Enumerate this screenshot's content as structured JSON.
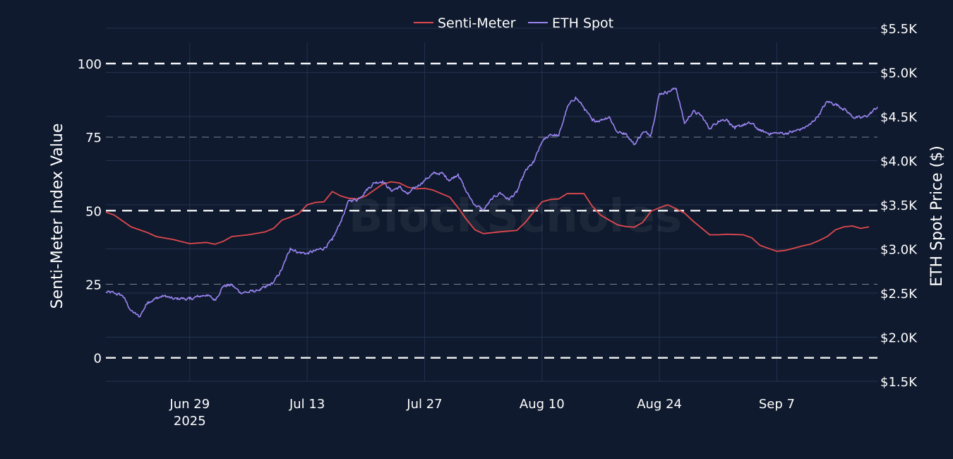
{
  "watermark": "BlockScholes",
  "colors": {
    "background": "#0f1a2e",
    "grid": "#24324f",
    "senti": "#e0484d",
    "eth": "#9b85f2",
    "refline": "#ffffff",
    "text": "#ffffff"
  },
  "chart_data": {
    "type": "line",
    "title": "",
    "x_labels": [
      {
        "date": "2025-06-29",
        "label": "Jun 29",
        "sublabel": "2025"
      },
      {
        "date": "2025-07-13",
        "label": "Jul 13",
        "sublabel": ""
      },
      {
        "date": "2025-07-27",
        "label": "Jul 27",
        "sublabel": ""
      },
      {
        "date": "2025-08-10",
        "label": "Aug 10",
        "sublabel": ""
      },
      {
        "date": "2025-08-24",
        "label": "Aug 24",
        "sublabel": ""
      },
      {
        "date": "2025-09-07",
        "label": "Sep 7",
        "sublabel": ""
      }
    ],
    "xrange": [
      "2025-06-19",
      "2025-09-19"
    ],
    "y_left": {
      "title": "Senti-Meter Index Value",
      "range": [
        -8,
        112
      ],
      "ticks": [
        0,
        25,
        50,
        75,
        100
      ],
      "tick_labels": [
        "0",
        "25",
        "50",
        "75",
        "100"
      ],
      "reference_lines": [
        0,
        50,
        100
      ]
    },
    "y_right": {
      "title": "ETH Spot Price ($)",
      "range": [
        1500,
        5500
      ],
      "ticks": [
        1500,
        2000,
        2500,
        3000,
        3500,
        4000,
        4500,
        5000,
        5500
      ],
      "tick_labels": [
        "$1.5K",
        "$2.0K",
        "$2.5K",
        "$3.0K",
        "$3.5K",
        "$4.0K",
        "$4.5K",
        "$5.0K",
        "$5.5K"
      ]
    },
    "legend": {
      "position": "top-center"
    },
    "series": [
      {
        "name": "Senti-Meter",
        "axis": "left",
        "color": "#e0484d",
        "points": [
          [
            "2025-06-19",
            49.5
          ],
          [
            "2025-06-20",
            48.5
          ],
          [
            "2025-06-22",
            44.5
          ],
          [
            "2025-06-24",
            42.5
          ],
          [
            "2025-06-25",
            41.2
          ],
          [
            "2025-06-27",
            40.2
          ],
          [
            "2025-06-29",
            38.8
          ],
          [
            "2025-07-01",
            39.2
          ],
          [
            "2025-07-02",
            38.6
          ],
          [
            "2025-07-03",
            39.6
          ],
          [
            "2025-07-04",
            41.2
          ],
          [
            "2025-07-06",
            41.8
          ],
          [
            "2025-07-08",
            42.8
          ],
          [
            "2025-07-09",
            44.0
          ],
          [
            "2025-07-10",
            46.8
          ],
          [
            "2025-07-11",
            47.8
          ],
          [
            "2025-07-12",
            49.0
          ],
          [
            "2025-07-13",
            52.0
          ],
          [
            "2025-07-14",
            52.8
          ],
          [
            "2025-07-15",
            53.0
          ],
          [
            "2025-07-16",
            56.5
          ],
          [
            "2025-07-17",
            55.0
          ],
          [
            "2025-07-18",
            54.2
          ],
          [
            "2025-07-19",
            54.0
          ],
          [
            "2025-07-20",
            55.0
          ],
          [
            "2025-07-21",
            57.0
          ],
          [
            "2025-07-22",
            59.0
          ],
          [
            "2025-07-23",
            59.8
          ],
          [
            "2025-07-24",
            59.4
          ],
          [
            "2025-07-25",
            58.0
          ],
          [
            "2025-07-26",
            57.4
          ],
          [
            "2025-07-27",
            57.6
          ],
          [
            "2025-07-28",
            57.0
          ],
          [
            "2025-07-29",
            55.8
          ],
          [
            "2025-07-30",
            54.6
          ],
          [
            "2025-07-31",
            51.0
          ],
          [
            "2025-08-01",
            47.0
          ],
          [
            "2025-08-02",
            43.5
          ],
          [
            "2025-08-03",
            42.2
          ],
          [
            "2025-08-05",
            42.8
          ],
          [
            "2025-08-07",
            43.3
          ],
          [
            "2025-08-08",
            46.0
          ],
          [
            "2025-08-10",
            53.0
          ],
          [
            "2025-08-11",
            53.8
          ],
          [
            "2025-08-12",
            54.0
          ],
          [
            "2025-08-13",
            55.8
          ],
          [
            "2025-08-15",
            55.8
          ],
          [
            "2025-08-16",
            51.5
          ],
          [
            "2025-08-17",
            48.5
          ],
          [
            "2025-08-18",
            46.8
          ],
          [
            "2025-08-19",
            45.2
          ],
          [
            "2025-08-20",
            44.6
          ],
          [
            "2025-08-21",
            44.4
          ],
          [
            "2025-08-22",
            46.0
          ],
          [
            "2025-08-23",
            49.8
          ],
          [
            "2025-08-24",
            51.0
          ],
          [
            "2025-08-25",
            52.0
          ],
          [
            "2025-08-26",
            50.6
          ],
          [
            "2025-08-27",
            49.2
          ],
          [
            "2025-08-28",
            46.5
          ],
          [
            "2025-08-30",
            41.8
          ],
          [
            "2025-08-31",
            41.8
          ],
          [
            "2025-09-01",
            42.0
          ],
          [
            "2025-09-03",
            41.8
          ],
          [
            "2025-09-04",
            40.8
          ],
          [
            "2025-09-05",
            38.2
          ],
          [
            "2025-09-06",
            37.2
          ],
          [
            "2025-09-07",
            36.2
          ],
          [
            "2025-09-08",
            36.5
          ],
          [
            "2025-09-09",
            37.2
          ],
          [
            "2025-09-10",
            38.0
          ],
          [
            "2025-09-11",
            38.6
          ],
          [
            "2025-09-12",
            39.8
          ],
          [
            "2025-09-13",
            41.2
          ],
          [
            "2025-09-14",
            43.5
          ],
          [
            "2025-09-15",
            44.5
          ],
          [
            "2025-09-16",
            44.8
          ],
          [
            "2025-09-17",
            44.0
          ],
          [
            "2025-09-18",
            44.5
          ]
        ]
      },
      {
        "name": "ETH Spot",
        "axis": "right",
        "color": "#9b85f2",
        "points": [
          [
            "2025-06-19",
            2510
          ],
          [
            "2025-06-20",
            2500
          ],
          [
            "2025-06-21",
            2470
          ],
          [
            "2025-06-22",
            2300
          ],
          [
            "2025-06-23",
            2230
          ],
          [
            "2025-06-24",
            2400
          ],
          [
            "2025-06-25",
            2440
          ],
          [
            "2025-06-26",
            2470
          ],
          [
            "2025-06-27",
            2430
          ],
          [
            "2025-06-28",
            2440
          ],
          [
            "2025-06-29",
            2430
          ],
          [
            "2025-06-30",
            2460
          ],
          [
            "2025-07-01",
            2480
          ],
          [
            "2025-07-02",
            2420
          ],
          [
            "2025-07-03",
            2580
          ],
          [
            "2025-07-04",
            2590
          ],
          [
            "2025-07-05",
            2510
          ],
          [
            "2025-07-06",
            2510
          ],
          [
            "2025-07-07",
            2530
          ],
          [
            "2025-07-08",
            2560
          ],
          [
            "2025-07-09",
            2620
          ],
          [
            "2025-07-10",
            2770
          ],
          [
            "2025-07-11",
            3010
          ],
          [
            "2025-07-12",
            2960
          ],
          [
            "2025-07-13",
            2950
          ],
          [
            "2025-07-14",
            2980
          ],
          [
            "2025-07-15",
            3010
          ],
          [
            "2025-07-16",
            3100
          ],
          [
            "2025-07-17",
            3310
          ],
          [
            "2025-07-18",
            3550
          ],
          [
            "2025-07-19",
            3560
          ],
          [
            "2025-07-20",
            3660
          ],
          [
            "2025-07-21",
            3750
          ],
          [
            "2025-07-22",
            3770
          ],
          [
            "2025-07-23",
            3660
          ],
          [
            "2025-07-24",
            3700
          ],
          [
            "2025-07-25",
            3620
          ],
          [
            "2025-07-26",
            3700
          ],
          [
            "2025-07-27",
            3780
          ],
          [
            "2025-07-28",
            3850
          ],
          [
            "2025-07-29",
            3860
          ],
          [
            "2025-07-30",
            3780
          ],
          [
            "2025-07-31",
            3850
          ],
          [
            "2025-08-01",
            3640
          ],
          [
            "2025-08-02",
            3500
          ],
          [
            "2025-08-03",
            3440
          ],
          [
            "2025-08-04",
            3560
          ],
          [
            "2025-08-05",
            3640
          ],
          [
            "2025-08-06",
            3560
          ],
          [
            "2025-08-07",
            3640
          ],
          [
            "2025-08-08",
            3880
          ],
          [
            "2025-08-09",
            3980
          ],
          [
            "2025-08-10",
            4210
          ],
          [
            "2025-08-11",
            4300
          ],
          [
            "2025-08-12",
            4280
          ],
          [
            "2025-08-13",
            4600
          ],
          [
            "2025-08-14",
            4720
          ],
          [
            "2025-08-15",
            4600
          ],
          [
            "2025-08-16",
            4450
          ],
          [
            "2025-08-17",
            4460
          ],
          [
            "2025-08-18",
            4500
          ],
          [
            "2025-08-19",
            4320
          ],
          [
            "2025-08-20",
            4310
          ],
          [
            "2025-08-21",
            4180
          ],
          [
            "2025-08-22",
            4320
          ],
          [
            "2025-08-23",
            4300
          ],
          [
            "2025-08-24",
            4760
          ],
          [
            "2025-08-25",
            4780
          ],
          [
            "2025-08-26",
            4820
          ],
          [
            "2025-08-27",
            4420
          ],
          [
            "2025-08-28",
            4560
          ],
          [
            "2025-08-29",
            4510
          ],
          [
            "2025-08-30",
            4360
          ],
          [
            "2025-08-31",
            4450
          ],
          [
            "2025-09-01",
            4470
          ],
          [
            "2025-09-02",
            4360
          ],
          [
            "2025-09-03",
            4410
          ],
          [
            "2025-09-04",
            4420
          ],
          [
            "2025-09-05",
            4340
          ],
          [
            "2025-09-06",
            4310
          ],
          [
            "2025-09-07",
            4310
          ],
          [
            "2025-09-08",
            4310
          ],
          [
            "2025-09-09",
            4330
          ],
          [
            "2025-09-10",
            4360
          ],
          [
            "2025-09-11",
            4410
          ],
          [
            "2025-09-12",
            4520
          ],
          [
            "2025-09-13",
            4670
          ],
          [
            "2025-09-14",
            4640
          ],
          [
            "2025-09-15",
            4590
          ],
          [
            "2025-09-16",
            4500
          ],
          [
            "2025-09-17",
            4480
          ],
          [
            "2025-09-18",
            4520
          ],
          [
            "2025-09-19",
            4610
          ]
        ]
      }
    ]
  }
}
